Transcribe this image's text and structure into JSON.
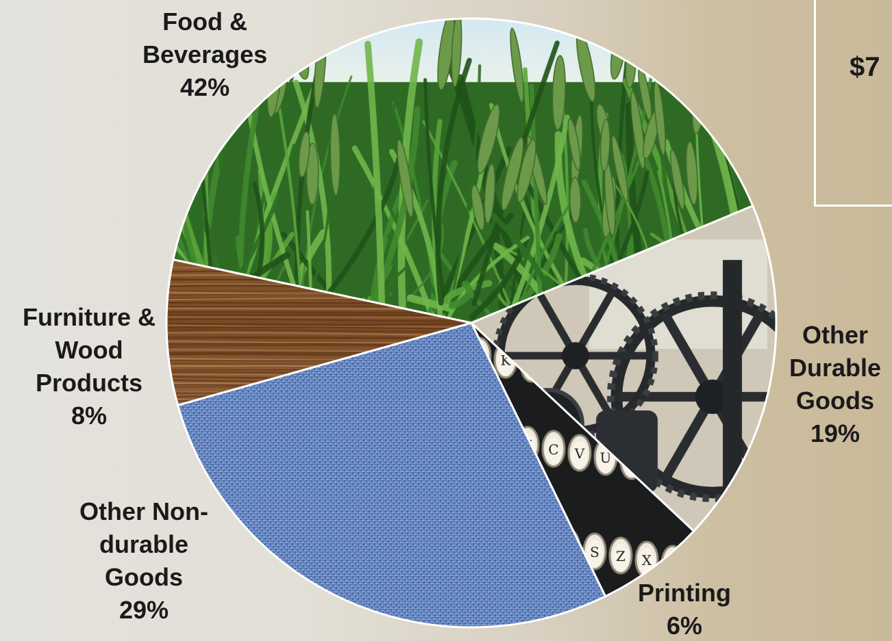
{
  "chart_data": {
    "type": "pie",
    "slices": [
      {
        "label_lines": [
          "Food &",
          "Beverages"
        ],
        "label": "Food & Beverages",
        "value": 42,
        "percent_text": "42%",
        "texture": "wheat-field",
        "color": "#3f7d2a"
      },
      {
        "label_lines": [
          "Other",
          "Durable",
          "Goods"
        ],
        "label": "Other Durable Goods",
        "value": 19,
        "percent_text": "19%",
        "texture": "machinery-gears",
        "color": "#2d3338"
      },
      {
        "label_lines": [
          "Printing"
        ],
        "label": "Printing",
        "value": 6,
        "percent_text": "6%",
        "texture": "typewriter-keys",
        "color": "#1f1f1f"
      },
      {
        "label_lines": [
          "Other Non-",
          "durable",
          "Goods"
        ],
        "label": "Other Non-durable Goods",
        "value": 29,
        "percent_text": "29%",
        "texture": "blue-fabric",
        "color": "#5a7cb8"
      },
      {
        "label_lines": [
          "Furniture &",
          "Wood",
          "Products"
        ],
        "label": "Furniture & Wood Products",
        "value": 8,
        "percent_text": "8%",
        "texture": "wood-grain",
        "color": "#8a5a32"
      }
    ]
  },
  "side_box": {
    "value_text": "$7"
  }
}
